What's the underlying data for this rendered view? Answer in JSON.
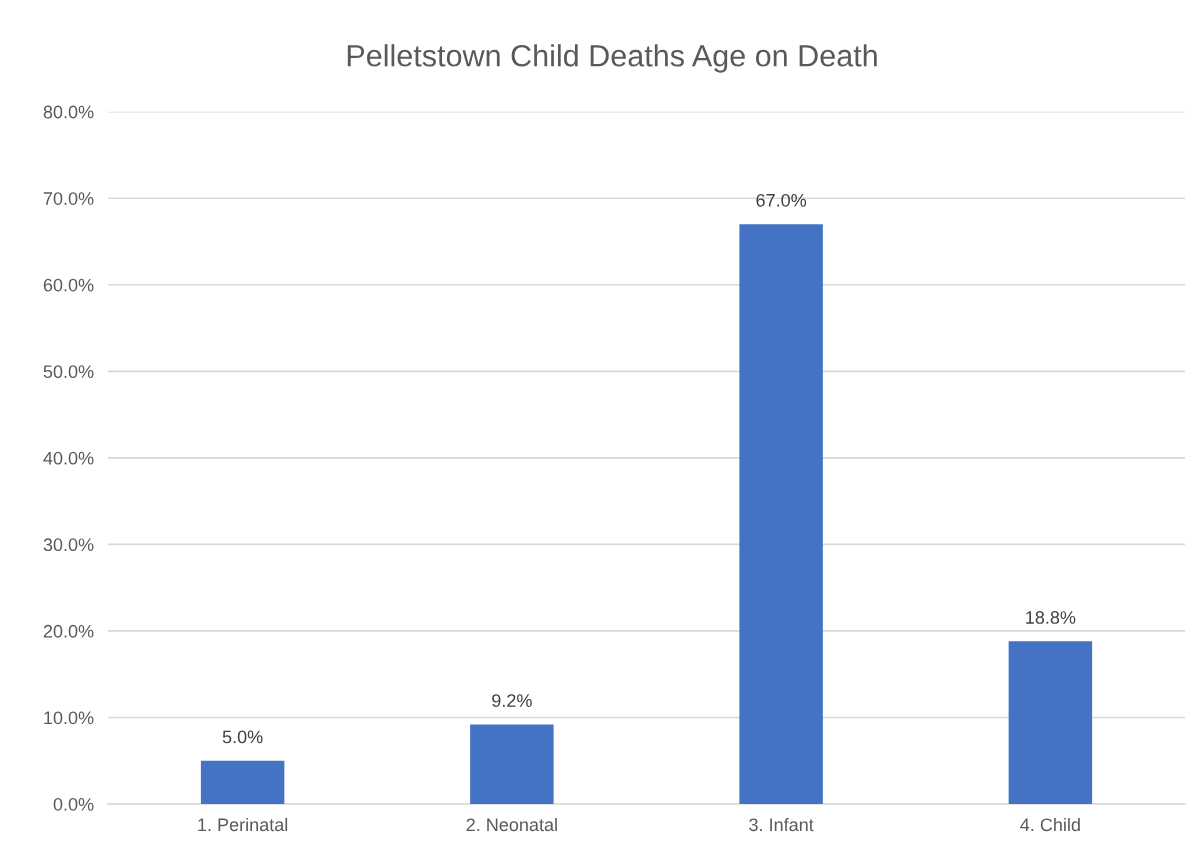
{
  "chart_data": {
    "type": "bar",
    "title": "Pelletstown Child Deaths Age on Death",
    "categories": [
      "1. Perinatal",
      "2. Neonatal",
      "3. Infant",
      "4. Child"
    ],
    "values": [
      5.0,
      9.2,
      67.0,
      18.8
    ],
    "color": "#4472c4",
    "value_labels": [
      "5.0%",
      "9.2%",
      "67.0%",
      "18.8%"
    ],
    "ylim": [
      0,
      80
    ],
    "yticks": [
      {
        "value": 0,
        "label": "0.0%"
      },
      {
        "value": 10,
        "label": "10.0%"
      },
      {
        "value": 20,
        "label": "20.0%"
      },
      {
        "value": 30,
        "label": "30.0%"
      },
      {
        "value": 40,
        "label": "40.0%"
      },
      {
        "value": 50,
        "label": "50.0%"
      },
      {
        "value": 60,
        "label": "60.0%"
      },
      {
        "value": 70,
        "label": "70.0%"
      },
      {
        "value": 80,
        "label": "80.0%"
      }
    ],
    "grid": "y",
    "legend": false
  }
}
